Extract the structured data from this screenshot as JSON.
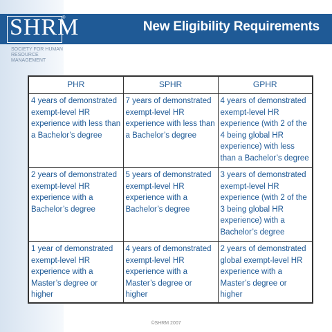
{
  "header": {
    "title": "New Eligibility Requirements",
    "logo_text": "SHRM",
    "logo_tm": "®",
    "logo_tagline": "Society for Human Resource Management"
  },
  "table": {
    "columns": [
      "PHR",
      "SPHR",
      "GPHR"
    ],
    "rows": [
      [
        "4 years of demonstrated exempt-level HR experience with less than a Bachelor’s degree",
        "7 years of demonstrated exempt-level HR experience with less than a Bachelor’s degree",
        "4 years of demonstrated exempt-level HR experience (with 2 of the 4 being global HR experience) with less than a Bachelor’s degree"
      ],
      [
        "2 years of  demonstrated exempt-level HR experience with a Bachelor’s degree",
        "5 years of  demonstrated exempt-level HR experience with a Bachelor’s degree",
        "3 years of demonstrated exempt-level HR experience (with 2 of the 3 being global HR experience) with  a Bachelor’s degree"
      ],
      [
        "1 year of demonstrated exempt-level HR experience with a Master’s degree or higher",
        "4 years of demonstrated exempt-level HR experience with a Master’s degree or higher",
        "2 years of demonstrated global exempt-level HR experience with a Master’s degree or higher"
      ]
    ]
  },
  "footer": {
    "copyright": "©SHRM 2007"
  },
  "colors": {
    "brand_blue": "#1f5a96",
    "text_blue": "#1f5a96"
  }
}
